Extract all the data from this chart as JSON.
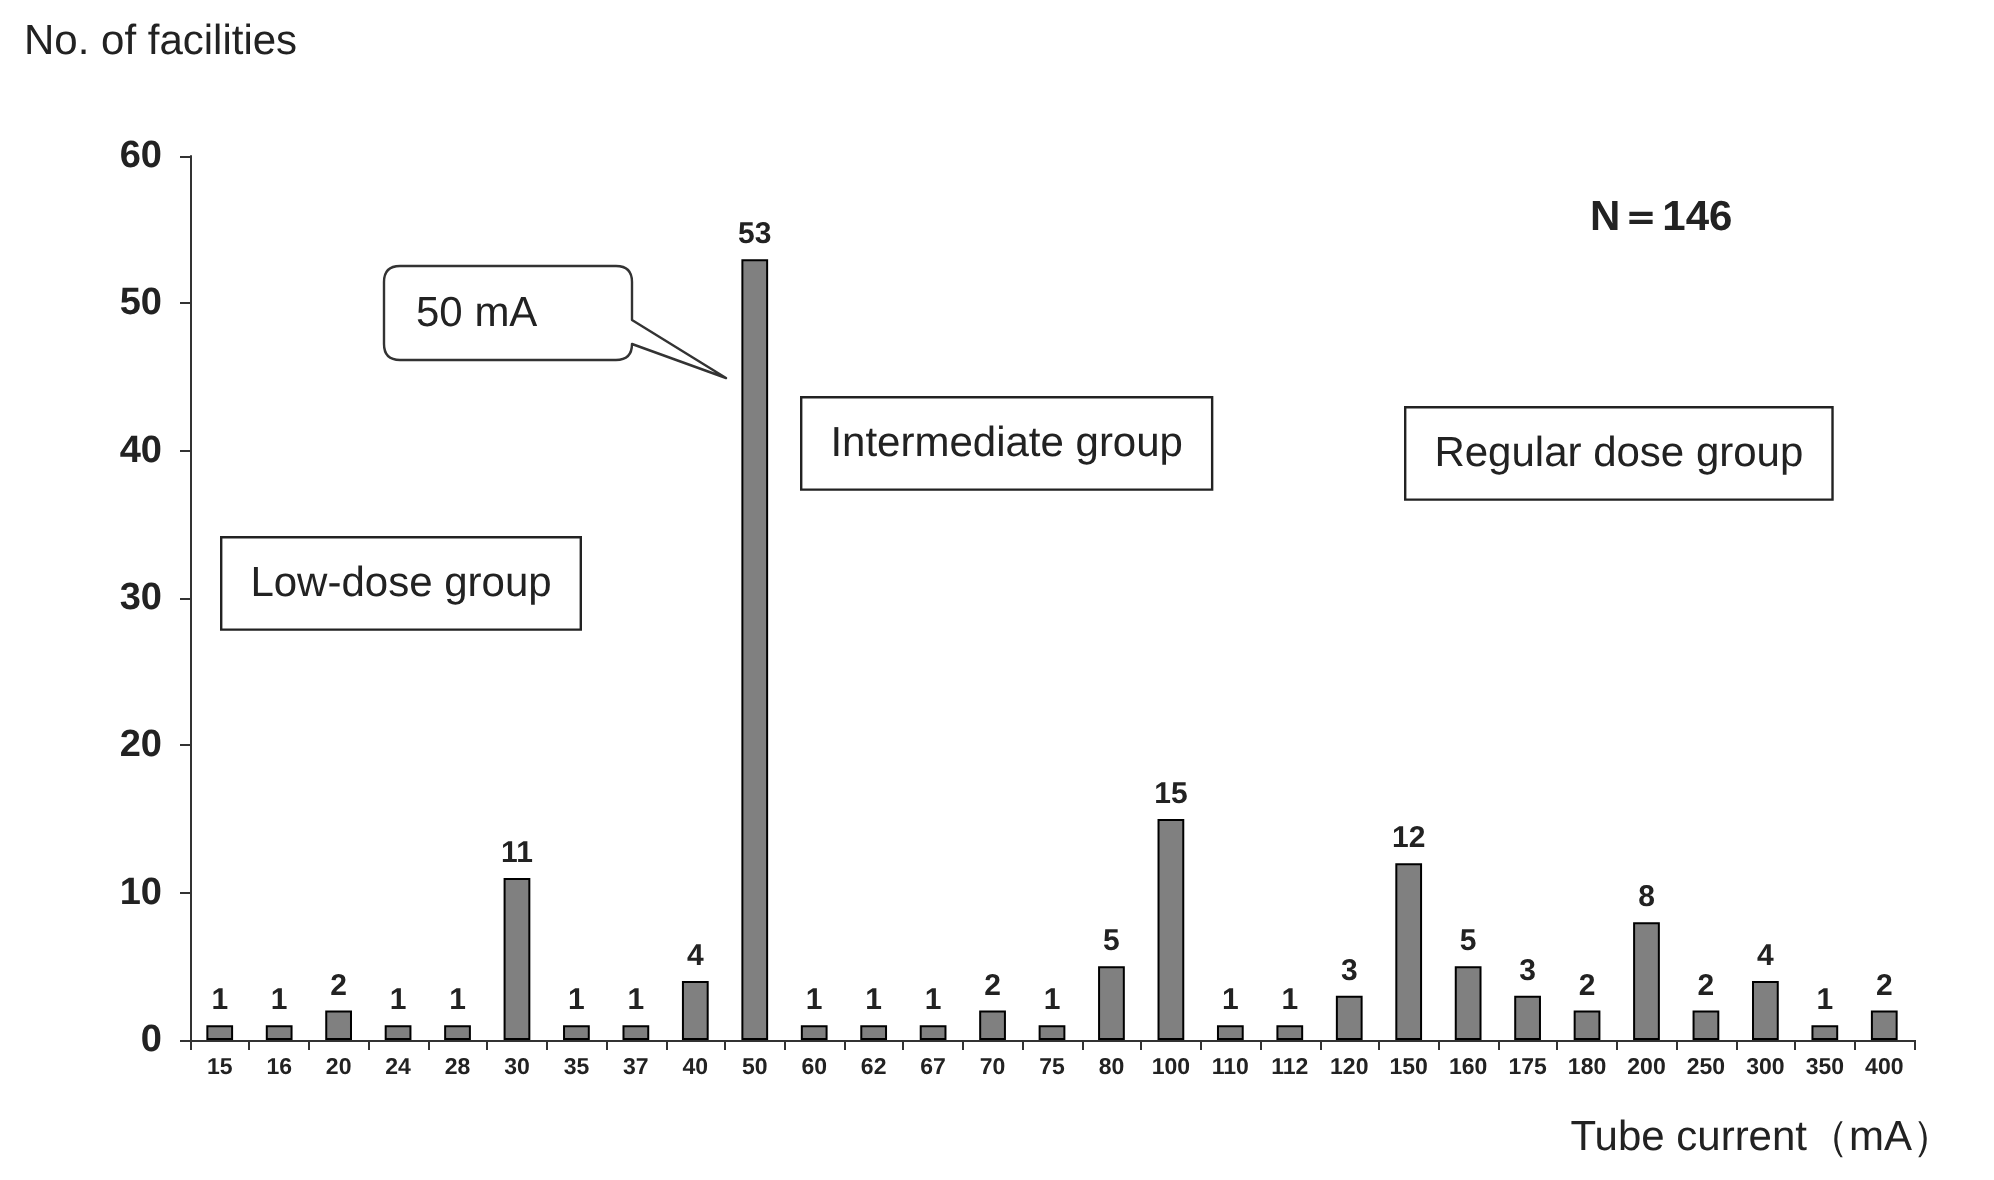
{
  "chart_data": {
    "type": "bar",
    "ylabel": "No. of facilities",
    "xlabel": "Tube current（mA）",
    "categories": [
      "15",
      "16",
      "20",
      "24",
      "28",
      "30",
      "35",
      "37",
      "40",
      "50",
      "60",
      "62",
      "67",
      "70",
      "75",
      "80",
      "100",
      "110",
      "112",
      "120",
      "150",
      "160",
      "175",
      "180",
      "200",
      "250",
      "300",
      "350",
      "400"
    ],
    "values": [
      1,
      1,
      2,
      1,
      1,
      11,
      1,
      1,
      4,
      53,
      1,
      1,
      1,
      2,
      1,
      5,
      15,
      1,
      1,
      3,
      12,
      5,
      3,
      2,
      8,
      2,
      4,
      1,
      2
    ],
    "color": "#808080",
    "ylim": [
      0,
      60
    ],
    "yticks": [
      0,
      10,
      20,
      30,
      40,
      50,
      60
    ],
    "grid": false,
    "data_labels": true,
    "annotations": [
      "N＝146",
      "Low-dose group",
      "Intermediate group",
      "Regular dose group",
      "50 mA"
    ]
  }
}
